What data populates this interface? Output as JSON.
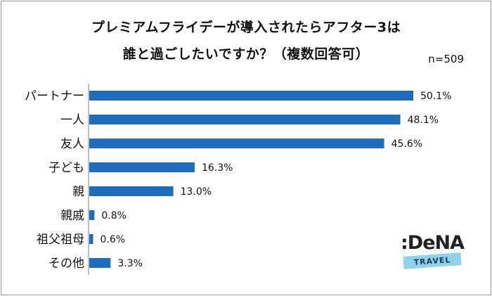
{
  "title": {
    "line1": "プレミアムフライデーが導入されたらアフター3は",
    "line2": "誰と過ごしたいですか？（複数回答可）"
  },
  "note": "n=509",
  "logo": {
    "text": ":DeNA",
    "sub": "TRAVEL"
  },
  "colors": {
    "bar": "#1f6dbf",
    "axis": "#7f7f7f"
  },
  "chart_data": {
    "type": "bar",
    "orientation": "horizontal",
    "categories": [
      "パートナー",
      "一人",
      "友人",
      "子ども",
      "親",
      "親戚",
      "祖父祖母",
      "その他"
    ],
    "values": [
      50.1,
      48.1,
      45.6,
      16.3,
      13.0,
      0.8,
      0.6,
      3.3
    ],
    "value_labels": [
      "50.1%",
      "48.1%",
      "45.6%",
      "16.3%",
      "13.0%",
      "0.8%",
      "0.6%",
      "3.3%"
    ],
    "xlim": [
      0,
      50.1
    ],
    "grid": false
  }
}
